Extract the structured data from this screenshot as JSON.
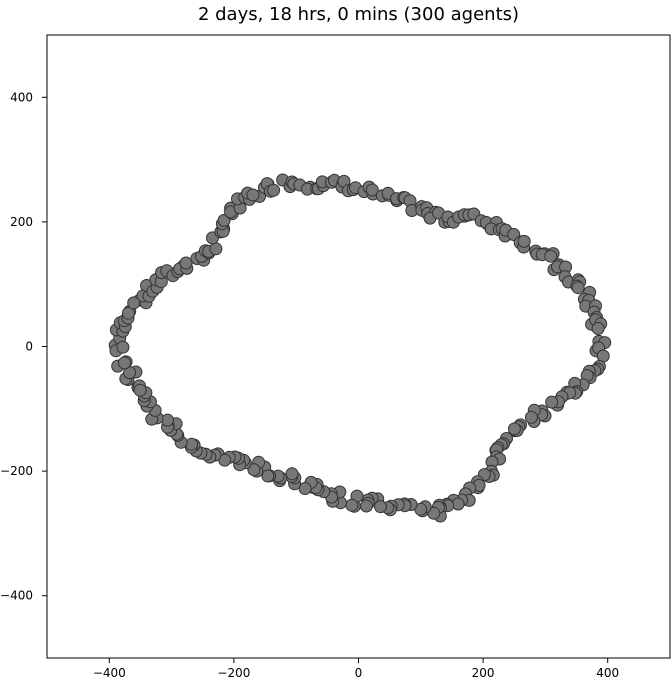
{
  "chart_data": {
    "type": "scatter",
    "title": "2 days, 18 hrs, 0 mins (300 agents)",
    "xlabel": "",
    "ylabel": "",
    "xlim": [
      -500,
      500
    ],
    "ylim": [
      -500,
      500
    ],
    "xticks": [
      -400,
      -200,
      0,
      200,
      400
    ],
    "yticks": [
      400,
      200,
      0,
      -200,
      -400
    ],
    "grid": false,
    "marker_color": "#777777",
    "marker_edge_color": "#333333",
    "outline_points": [
      [
        -385,
        0
      ],
      [
        -375,
        50
      ],
      [
        -345,
        80
      ],
      [
        -310,
        110
      ],
      [
        -280,
        130
      ],
      [
        -240,
        150
      ],
      [
        -215,
        200
      ],
      [
        -185,
        230
      ],
      [
        -160,
        250
      ],
      [
        -110,
        265
      ],
      [
        -60,
        260
      ],
      [
        -10,
        258
      ],
      [
        40,
        240
      ],
      [
        90,
        225
      ],
      [
        130,
        205
      ],
      [
        170,
        210
      ],
      [
        210,
        200
      ],
      [
        240,
        185
      ],
      [
        280,
        160
      ],
      [
        320,
        130
      ],
      [
        360,
        90
      ],
      [
        380,
        50
      ],
      [
        390,
        0
      ],
      [
        385,
        -30
      ],
      [
        355,
        -60
      ],
      [
        320,
        -90
      ],
      [
        270,
        -120
      ],
      [
        230,
        -160
      ],
      [
        210,
        -205
      ],
      [
        180,
        -235
      ],
      [
        130,
        -265
      ],
      [
        80,
        -258
      ],
      [
        30,
        -252
      ],
      [
        -20,
        -245
      ],
      [
        -70,
        -225
      ],
      [
        -120,
        -210
      ],
      [
        -180,
        -190
      ],
      [
        -240,
        -170
      ],
      [
        -290,
        -140
      ],
      [
        -335,
        -100
      ],
      [
        -360,
        -60
      ],
      [
        -380,
        -25
      ]
    ],
    "agent_count": 300
  }
}
